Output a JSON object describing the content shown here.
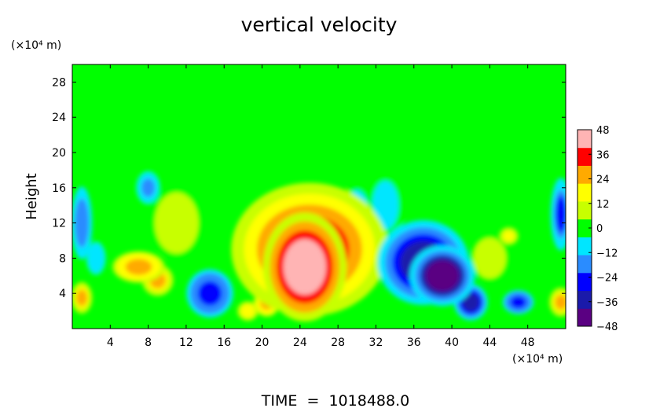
{
  "chart_data": {
    "type": "heatmap",
    "title": "vertical velocity",
    "ylabel": "Height",
    "y_unit": "(×10⁴ m)",
    "x_unit": "(×10⁴ m)",
    "footer": "TIME  =  1018488.0",
    "xlim": [
      0,
      52
    ],
    "ylim": [
      0,
      30
    ],
    "x_ticks": [
      4,
      8,
      12,
      16,
      20,
      24,
      28,
      32,
      36,
      40,
      44,
      48
    ],
    "y_ticks": [
      4,
      8,
      12,
      16,
      20,
      24,
      28
    ],
    "colorbar": {
      "min": -48,
      "max": 48,
      "ticks": [
        48,
        36,
        24,
        12,
        0,
        -12,
        -24,
        -36,
        -48
      ],
      "tick_labels": [
        "48",
        "36",
        "24",
        "12",
        "0",
        "−12",
        "−24",
        "−36",
        "−48"
      ],
      "colors": [
        "#5a0082",
        "#1a1aaa",
        "#0000ff",
        "#2a8cff",
        "#00e6ff",
        "#00ff00",
        "#c8ff00",
        "#ffff00",
        "#ffaa00",
        "#ff0000",
        "#ffb4b4"
      ]
    },
    "background_value": 0,
    "features": [
      {
        "x": 24.5,
        "y": 7,
        "value": 48,
        "sx": 3.2,
        "sy": 4.5
      },
      {
        "x": 25,
        "y": 9,
        "value": 36,
        "sx": 6,
        "sy": 5.5
      },
      {
        "x": 20.5,
        "y": 3,
        "value": 30,
        "sx": 1,
        "sy": 1.2
      },
      {
        "x": 18.5,
        "y": 2,
        "value": 22,
        "sx": 0.8,
        "sy": 0.8
      },
      {
        "x": 7,
        "y": 7,
        "value": 30,
        "sx": 2,
        "sy": 1.3
      },
      {
        "x": 9,
        "y": 5.5,
        "value": 24,
        "sx": 1.2,
        "sy": 1.3
      },
      {
        "x": 1,
        "y": 3.5,
        "value": 24,
        "sx": 0.8,
        "sy": 1.3
      },
      {
        "x": 51.5,
        "y": 3,
        "value": 28,
        "sx": 0.9,
        "sy": 1.2
      },
      {
        "x": 39,
        "y": 6,
        "value": -48,
        "sx": 2.5,
        "sy": 2.5
      },
      {
        "x": 37,
        "y": 7.5,
        "value": -36,
        "sx": 3.5,
        "sy": 3.5
      },
      {
        "x": 42,
        "y": 3,
        "value": -36,
        "sx": 1.3,
        "sy": 1.5
      },
      {
        "x": 14.5,
        "y": 4,
        "value": -30,
        "sx": 1.8,
        "sy": 2
      },
      {
        "x": 1,
        "y": 12,
        "value": -22,
        "sx": 0.8,
        "sy": 3
      },
      {
        "x": 51.5,
        "y": 13,
        "value": -26,
        "sx": 0.8,
        "sy": 3
      },
      {
        "x": 47,
        "y": 3,
        "value": -30,
        "sx": 1.2,
        "sy": 1
      },
      {
        "x": 2.5,
        "y": 8,
        "value": -12,
        "sx": 0.8,
        "sy": 1.5
      },
      {
        "x": 8,
        "y": 16,
        "value": -18,
        "sx": 1,
        "sy": 1.5
      },
      {
        "x": 44,
        "y": 8,
        "value": 10,
        "sx": 1.5,
        "sy": 2
      },
      {
        "x": 46,
        "y": 10.5,
        "value": 16,
        "sx": 0.8,
        "sy": 0.8
      },
      {
        "x": 11,
        "y": 12,
        "value": 10,
        "sx": 2,
        "sy": 3
      },
      {
        "x": 30,
        "y": 10,
        "value": -10,
        "sx": 1.5,
        "sy": 5
      },
      {
        "x": 33,
        "y": 14,
        "value": -8,
        "sx": 1.5,
        "sy": 3
      }
    ]
  }
}
